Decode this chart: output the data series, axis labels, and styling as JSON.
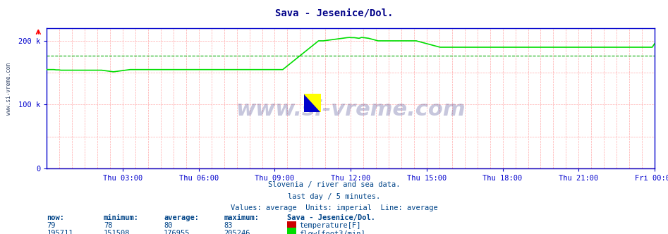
{
  "title": "Sava - Jesenice/Dol.",
  "bg_color": "#ffffff",
  "plot_bg_color": "#ffffff",
  "grid_color": "#ffaaaa",
  "axis_color": "#0000cc",
  "title_color": "#000088",
  "flow_color": "#00dd00",
  "temp_color": "#cc0000",
  "avg_line_color": "#00aa00",
  "xlim": [
    0,
    288
  ],
  "ylim": [
    0,
    220000
  ],
  "ytick_positions": [
    0,
    100000,
    200000
  ],
  "ytick_labels": [
    "0",
    "100 k",
    "200 k"
  ],
  "xtick_positions": [
    36,
    72,
    108,
    144,
    180,
    216,
    252,
    288
  ],
  "xtick_labels": [
    "Thu 03:00",
    "Thu 06:00",
    "Thu 09:00",
    "Thu 12:00",
    "Thu 15:00",
    "Thu 18:00",
    "Thu 21:00",
    "Fri 00:00"
  ],
  "average_flow": 176955,
  "watermark": "www.si-vreme.com",
  "footer_lines": [
    "Slovenia / river and sea data.",
    "last day / 5 minutes.",
    "Values: average  Units: imperial  Line: average"
  ],
  "table_headers": [
    "now:",
    "minimum:",
    "average:",
    "maximum:",
    "Sava - Jesenice/Dol."
  ],
  "table_temp": [
    "79",
    "78",
    "80",
    "83"
  ],
  "table_flow": [
    "195711",
    "151508",
    "176955",
    "205246"
  ],
  "label_temp": "temperature[F]",
  "label_flow": "flow[foot3/min]",
  "flow_data": [
    155000,
    155000,
    155000,
    155000,
    154500,
    154500,
    154000,
    154000,
    154000,
    154000,
    154000,
    154000,
    154000,
    154000,
    154000,
    154000,
    154000,
    154000,
    154000,
    154000,
    154000,
    154000,
    154000,
    154000,
    153500,
    153000,
    152500,
    152000,
    151508,
    152000,
    152500,
    153000,
    153500,
    154000,
    154500,
    155000,
    155000,
    155000,
    155000,
    155000,
    155000,
    155000,
    155000,
    155000,
    155000,
    155000,
    155000,
    155000,
    155000,
    155000,
    155000,
    155000,
    155000,
    155000,
    155000,
    155000,
    155000,
    155000,
    155000,
    155000,
    155000,
    155000,
    155000,
    155000,
    155000,
    155000,
    155000,
    155000,
    155000,
    155000,
    155000,
    155000,
    155000,
    155000,
    155000,
    155000,
    155000,
    155000,
    155000,
    155000,
    155000,
    155000,
    155000,
    155000,
    155000,
    155000,
    155000,
    155000,
    155000,
    155000,
    155000,
    155000,
    155000,
    155000,
    155000,
    155000,
    155000,
    155000,
    155000,
    155000,
    158000,
    161000,
    164000,
    167000,
    170000,
    173000,
    176000,
    179000,
    182000,
    185000,
    188000,
    191000,
    194000,
    197000,
    200000,
    200000,
    200000,
    200500,
    201000,
    201500,
    202000,
    202500,
    203000,
    203500,
    204000,
    204500,
    205000,
    205246,
    205000,
    205000,
    204500,
    204000,
    205246,
    205000,
    204500,
    204000,
    203000,
    202000,
    201000,
    200000,
    200000,
    200000,
    200000,
    200000,
    200000,
    200000,
    200000,
    200000,
    200000,
    200000,
    200000,
    200000,
    200000,
    200000,
    200000,
    200000,
    199000,
    198000,
    197000,
    196000,
    195000,
    194000,
    193000,
    192000,
    191000,
    190000,
    190000,
    190000,
    190000,
    190000,
    190000,
    190000,
    190000,
    190000,
    190000,
    190000,
    190000,
    190000,
    190000,
    190000,
    190000,
    190000,
    190000,
    190000,
    190000,
    190000,
    190000,
    190000,
    190000,
    190000,
    190000,
    190000,
    190000,
    190000,
    190000,
    190000,
    190000,
    190000,
    190000,
    190000,
    190000,
    190000,
    190000,
    190000,
    190000,
    190000,
    190000,
    190000,
    190000,
    190000,
    190000,
    190000,
    190000,
    190000,
    190000,
    190000,
    190000,
    190000,
    190000,
    190000,
    190000,
    190000,
    190000,
    190000,
    190000,
    190000,
    190000,
    190000,
    190000,
    190000,
    190000,
    190000,
    190000,
    190000,
    190000,
    190000,
    190000,
    190000,
    190000,
    190000,
    190000,
    190000,
    190000,
    190000,
    190000,
    190000,
    190000,
    190000,
    190000,
    190000,
    190000,
    190000,
    190000,
    190000,
    190000,
    195711
  ]
}
